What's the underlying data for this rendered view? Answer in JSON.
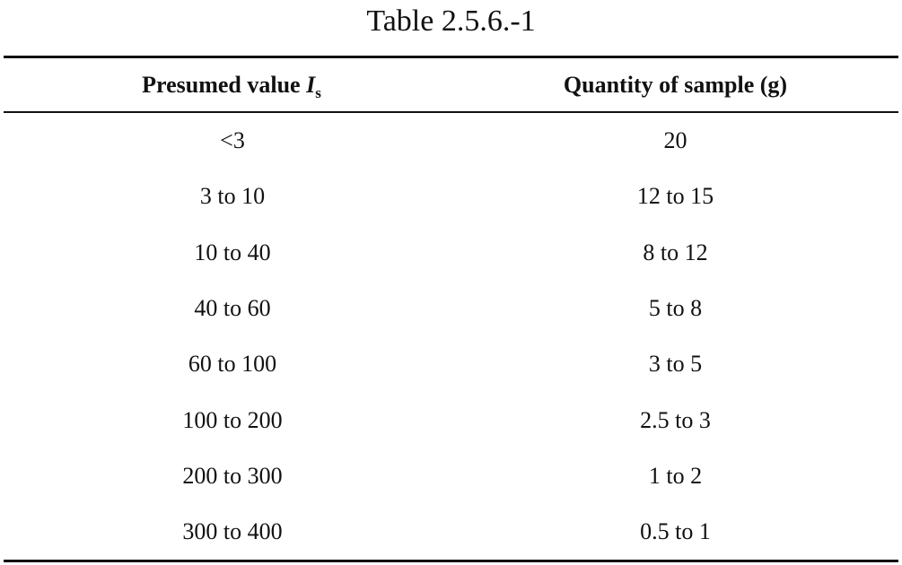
{
  "caption": "Table 2.5.6.-1",
  "header": {
    "col1_text": "Presumed value ",
    "col1_symbol": "I",
    "col1_subscript": "s",
    "col2": "Quantity of sample (g)"
  },
  "rows": [
    {
      "presumed_value": "<3",
      "quantity": "20"
    },
    {
      "presumed_value": "3 to 10",
      "quantity": "12 to 15"
    },
    {
      "presumed_value": "10 to 40",
      "quantity": "8 to 12"
    },
    {
      "presumed_value": "40 to 60",
      "quantity": "5 to 8"
    },
    {
      "presumed_value": "60 to 100",
      "quantity": "3 to 5"
    },
    {
      "presumed_value": "100 to 200",
      "quantity": "2.5 to 3"
    },
    {
      "presumed_value": "200 to 300",
      "quantity": "1 to 2"
    },
    {
      "presumed_value": "300 to 400",
      "quantity": "0.5 to 1"
    }
  ]
}
